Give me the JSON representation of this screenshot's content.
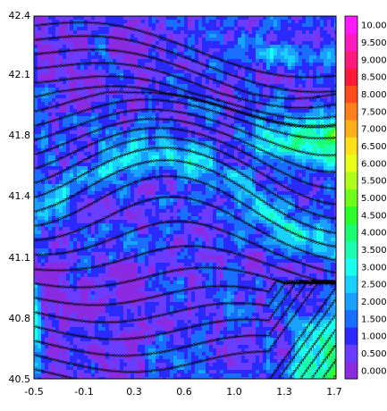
{
  "chart_data": {
    "type": "heatmap",
    "subtype": "filled-contour with streamlines",
    "title": "",
    "xlabel": "",
    "ylabel": "",
    "x_ticks": [
      "-0.5",
      "-0.1",
      "0.3",
      "0.6",
      "1.0",
      "1.3",
      "1.7"
    ],
    "y_ticks": [
      "40.5",
      "40.8",
      "41.1",
      "41.4",
      "41.8",
      "42.1",
      "42.4"
    ],
    "xlim": [
      -0.5,
      1.7
    ],
    "ylim": [
      40.5,
      42.4
    ],
    "grid": true,
    "legend_placement": "right colorbar",
    "colorbar": {
      "labels": [
        "0.000",
        "0.500",
        "1.000",
        "1.500",
        "2.000",
        "2.500",
        "3.000",
        "3.500",
        "4.000",
        "4.500",
        "5.000",
        "5.500",
        "6.000",
        "6.500",
        "7.000",
        "7.500",
        "8.000",
        "8.500",
        "9.000",
        "9.500",
        "10.00"
      ],
      "colors": [
        "#8a2be2",
        "#6a3cff",
        "#2a2aff",
        "#1a6eff",
        "#1aa0ff",
        "#1ad0ff",
        "#1afff0",
        "#1affb0",
        "#1aff70",
        "#2aff2a",
        "#70ff1a",
        "#b0ff1a",
        "#e8ff1a",
        "#ffe01a",
        "#ffb01a",
        "#ff801a",
        "#ff4a1a",
        "#ff1a3a",
        "#ff1a80",
        "#ff1ac0",
        "#ff1aff"
      ]
    },
    "field": {
      "description": "Wind speed magnitude field with streamline flow lines (mostly west-to-east)",
      "value_range": [
        0.0,
        5.5
      ],
      "dominant_values": "mostly 0.5–3.0; maxima ~4.5–5.5 near east edge at 41.6–41.9 and south-east corner",
      "low_values": "~0.0 patches in north-west and south-west"
    }
  }
}
